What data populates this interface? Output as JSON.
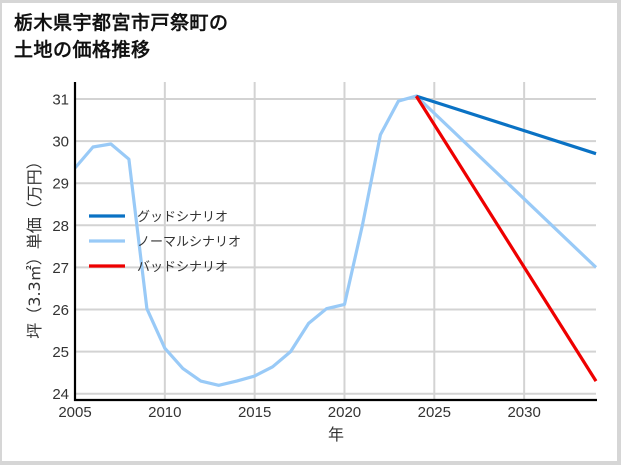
{
  "title": {
    "line1": "栃木県宇都宮市戸祭町の",
    "line2": "土地の価格推移"
  },
  "chart_data": {
    "type": "line",
    "title": "栃木県宇都宮市戸祭町の土地の価格推移",
    "xlabel": "年",
    "ylabel": "坪（3.3㎡）単価（万円）",
    "xlim": [
      2005,
      2034
    ],
    "ylim": [
      23.85,
      31.4
    ],
    "xticks": [
      2005,
      2010,
      2015,
      2020,
      2025,
      2030
    ],
    "yticks": [
      24,
      25,
      26,
      27,
      28,
      29,
      30,
      31
    ],
    "grid": true,
    "legend_position": "center-left",
    "series": [
      {
        "name": "グッドシナリオ",
        "color": "#0a72c4",
        "x": [
          2024,
          2034
        ],
        "values": [
          31.07,
          29.7
        ]
      },
      {
        "name": "ノーマルシナリオ",
        "color": "#99caf7",
        "x": [
          2005,
          2006,
          2007,
          2008,
          2009,
          2010,
          2011,
          2012,
          2013,
          2014,
          2015,
          2016,
          2017,
          2018,
          2019,
          2020,
          2021,
          2022,
          2023,
          2024,
          2034
        ],
        "values": [
          29.36,
          29.86,
          29.93,
          29.57,
          26.02,
          25.08,
          24.6,
          24.3,
          24.2,
          24.3,
          24.42,
          24.64,
          25.0,
          25.67,
          26.02,
          26.12,
          28.0,
          30.15,
          30.95,
          31.07,
          27.0
        ]
      },
      {
        "name": "バッドシナリオ",
        "color": "#ee0000",
        "x": [
          2024,
          2034
        ],
        "values": [
          31.07,
          24.3
        ]
      }
    ]
  },
  "colors": {
    "grid": "#d3d3d3",
    "axis": "#000000",
    "frame": "#d6d6d6"
  }
}
